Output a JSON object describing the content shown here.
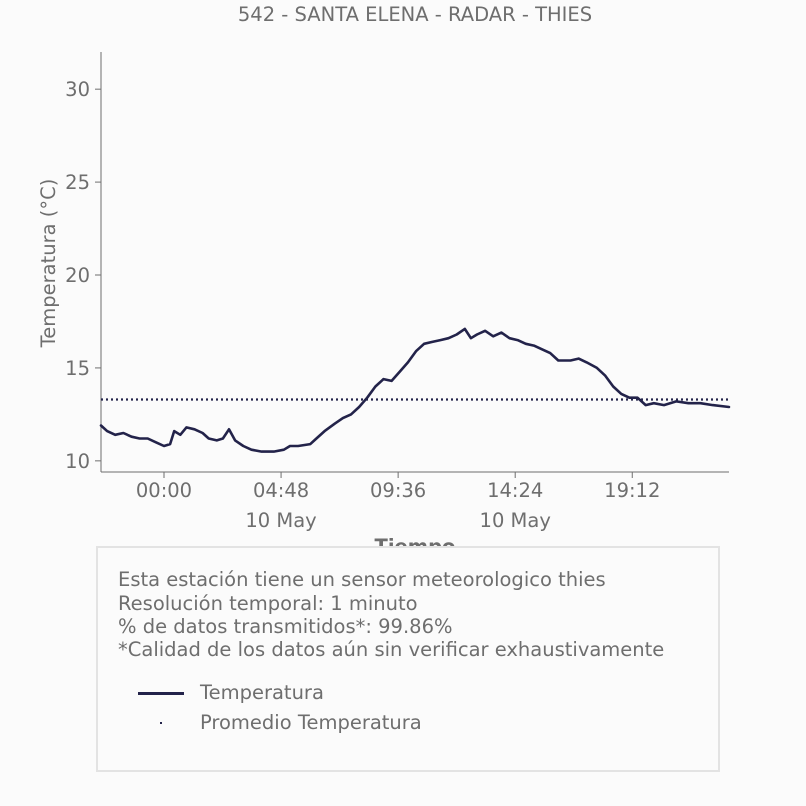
{
  "chart_data": {
    "type": "line",
    "title": "542 - SANTA ELENA - RADAR - THIES",
    "xlabel": "Tiempo",
    "ylabel": "Temperatura (°C)",
    "ylim": [
      9.4,
      32.0
    ],
    "xlim": [
      "09 May 21:25",
      "10 May 23:10"
    ],
    "yticks": [
      10,
      15,
      20,
      25,
      30
    ],
    "xticks": [
      {
        "time": "00:00",
        "date": ""
      },
      {
        "time": "04:48",
        "date": "10 May"
      },
      {
        "time": "09:36",
        "date": ""
      },
      {
        "time": "14:24",
        "date": "10 May"
      },
      {
        "time": "19:12",
        "date": ""
      }
    ],
    "grid": false,
    "series": [
      {
        "name": "Temperatura",
        "color": "#23234a",
        "style": "solid",
        "points": [
          [
            "09 May 21:25",
            11.9
          ],
          [
            "09 May 21:40",
            11.6
          ],
          [
            "09 May 22:00",
            11.4
          ],
          [
            "09 May 22:20",
            11.5
          ],
          [
            "09 May 22:40",
            11.3
          ],
          [
            "09 May 23:00",
            11.2
          ],
          [
            "09 May 23:20",
            11.2
          ],
          [
            "09 May 23:40",
            11.0
          ],
          [
            "10 May 00:00",
            10.8
          ],
          [
            "10 May 00:15",
            10.9
          ],
          [
            "10 May 00:25",
            11.6
          ],
          [
            "10 May 00:40",
            11.4
          ],
          [
            "10 May 00:55",
            11.8
          ],
          [
            "10 May 01:15",
            11.7
          ],
          [
            "10 May 01:35",
            11.5
          ],
          [
            "10 May 01:50",
            11.2
          ],
          [
            "10 May 02:10",
            11.1
          ],
          [
            "10 May 02:25",
            11.2
          ],
          [
            "10 May 02:40",
            11.7
          ],
          [
            "10 May 02:55",
            11.1
          ],
          [
            "10 May 03:15",
            10.8
          ],
          [
            "10 May 03:35",
            10.6
          ],
          [
            "10 May 04:00",
            10.5
          ],
          [
            "10 May 04:30",
            10.5
          ],
          [
            "10 May 04:55",
            10.6
          ],
          [
            "10 May 05:10",
            10.8
          ],
          [
            "10 May 05:30",
            10.8
          ],
          [
            "10 May 06:00",
            10.9
          ],
          [
            "10 May 06:15",
            11.2
          ],
          [
            "10 May 06:35",
            11.6
          ],
          [
            "10 May 07:00",
            12.0
          ],
          [
            "10 May 07:20",
            12.3
          ],
          [
            "10 May 07:40",
            12.5
          ],
          [
            "10 May 08:00",
            12.9
          ],
          [
            "10 May 08:20",
            13.4
          ],
          [
            "10 May 08:40",
            14.0
          ],
          [
            "10 May 09:00",
            14.4
          ],
          [
            "10 May 09:20",
            14.3
          ],
          [
            "10 May 09:40",
            14.8
          ],
          [
            "10 May 10:00",
            15.3
          ],
          [
            "10 May 10:20",
            15.9
          ],
          [
            "10 May 10:40",
            16.3
          ],
          [
            "10 May 11:00",
            16.4
          ],
          [
            "10 May 11:20",
            16.5
          ],
          [
            "10 May 11:40",
            16.6
          ],
          [
            "10 May 12:00",
            16.8
          ],
          [
            "10 May 12:20",
            17.1
          ],
          [
            "10 May 12:35",
            16.6
          ],
          [
            "10 May 12:50",
            16.8
          ],
          [
            "10 May 13:10",
            17.0
          ],
          [
            "10 May 13:30",
            16.7
          ],
          [
            "10 May 13:50",
            16.9
          ],
          [
            "10 May 14:10",
            16.6
          ],
          [
            "10 May 14:30",
            16.5
          ],
          [
            "10 May 14:50",
            16.3
          ],
          [
            "10 May 15:10",
            16.2
          ],
          [
            "10 May 15:30",
            16.0
          ],
          [
            "10 May 15:50",
            15.8
          ],
          [
            "10 May 16:10",
            15.4
          ],
          [
            "10 May 16:40",
            15.4
          ],
          [
            "10 May 17:00",
            15.5
          ],
          [
            "10 May 17:20",
            15.3
          ],
          [
            "10 May 17:45",
            15.0
          ],
          [
            "10 May 18:05",
            14.6
          ],
          [
            "10 May 18:25",
            14.0
          ],
          [
            "10 May 18:45",
            13.6
          ],
          [
            "10 May 19:05",
            13.4
          ],
          [
            "10 May 19:25",
            13.4
          ],
          [
            "10 May 19:45",
            13.0
          ],
          [
            "10 May 20:05",
            13.1
          ],
          [
            "10 May 20:30",
            13.0
          ],
          [
            "10 May 21:00",
            13.2
          ],
          [
            "10 May 21:30",
            13.1
          ],
          [
            "10 May 22:00",
            13.1
          ],
          [
            "10 May 22:30",
            13.0
          ],
          [
            "10 May 23:10",
            12.9
          ]
        ]
      },
      {
        "name": "Promedio Temperatura",
        "color": "#23234a",
        "style": "dotted",
        "value": 13.3
      }
    ]
  },
  "info": {
    "lines": [
      "Esta estación tiene un sensor meteorologico thies",
      "Resolución temporal: 1 minuto",
      "% de datos transmitidos*: 99.86%",
      "*Calidad de los datos aún sin verificar exhaustivamente"
    ],
    "legend": [
      {
        "label": "Temperatura",
        "kind": "line"
      },
      {
        "label": "Promedio Temperatura",
        "kind": "dot"
      }
    ]
  },
  "colors": {
    "line": "#23234a",
    "text": "#6e6e6e",
    "axis": "#6e6e6e",
    "box_border": "#e3e3e3",
    "background": "#fbfbfb"
  }
}
